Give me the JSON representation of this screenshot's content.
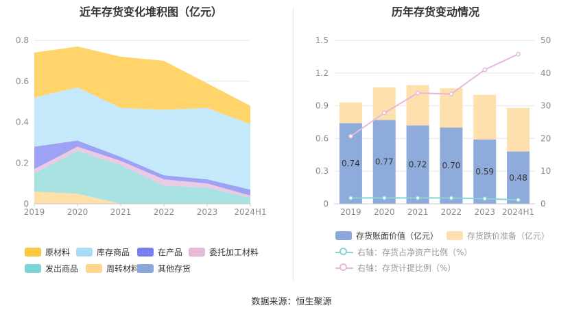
{
  "titles": {
    "left": "近年存货变化堆积图（亿元）",
    "right": "历年存货变动情况"
  },
  "source": "数据来源：恒生聚源",
  "colors": {
    "原材料": "#ffd56b",
    "库存商品": "#c3e9fb",
    "在产品": "#9ea2f5",
    "委托加工材料": "#eec9e3",
    "发出商品": "#a8e2e1",
    "周转材料": "#ffe0a8",
    "其他存货": "#93b1e2",
    "book_value": "#8eabdc",
    "impairment": "#fde0ad",
    "ratio_net": "#88d3d6",
    "ratio_provision": "#e7b8de"
  },
  "left_legend": [
    {
      "label": "原材料",
      "swatch": "#f9c842"
    },
    {
      "label": "库存商品",
      "swatch": "#a9dcf7"
    },
    {
      "label": "在产品",
      "swatch": "#7b7fee"
    },
    {
      "label": "委托加工材料",
      "swatch": "#e6b8da"
    },
    {
      "label": "发出商品",
      "swatch": "#7ed3d3"
    },
    {
      "label": "周转材料",
      "swatch": "#fdd58c"
    },
    {
      "label": "其他存货",
      "swatch": "#8aa8dc"
    }
  ],
  "right_legend": [
    {
      "label": "存货账面价值（亿元）",
      "swatch": "#8aa8dc",
      "kind": "box",
      "muted": false
    },
    {
      "label": "存货跌价准备（亿元）",
      "swatch": "#fde0ad",
      "kind": "box",
      "muted": true
    },
    {
      "label": "右轴：存货占净资产比例（%）",
      "swatch": "#88d3d6",
      "kind": "line",
      "muted": true
    },
    {
      "label": "右轴：存货计提比例（%）",
      "swatch": "#e7b8de",
      "kind": "line",
      "muted": true
    }
  ],
  "chart_data": [
    {
      "type": "area",
      "stacked": true,
      "title": "近年存货变化堆积图（亿元）",
      "categories": [
        "2019",
        "2020",
        "2021",
        "2022",
        "2023",
        "2024H1"
      ],
      "ylim": [
        0,
        0.8
      ],
      "yticks": [
        "0",
        "0.2",
        "0.4",
        "0.6",
        "0.8"
      ],
      "grid": true,
      "legend_position": "bottom",
      "series": [
        {
          "name": "周转材料",
          "values": [
            0.06,
            0.05,
            0.0,
            0.0,
            0.0,
            0.0
          ]
        },
        {
          "name": "发出商品",
          "values": [
            0.09,
            0.21,
            0.19,
            0.09,
            0.08,
            0.03
          ]
        },
        {
          "name": "委托加工材料",
          "values": [
            0.02,
            0.02,
            0.02,
            0.03,
            0.02,
            0.01
          ]
        },
        {
          "name": "在产品",
          "values": [
            0.11,
            0.03,
            0.02,
            0.02,
            0.02,
            0.03
          ]
        },
        {
          "name": "库存商品",
          "values": [
            0.24,
            0.26,
            0.24,
            0.32,
            0.35,
            0.32
          ]
        },
        {
          "name": "原材料",
          "values": [
            0.22,
            0.2,
            0.25,
            0.24,
            0.12,
            0.09
          ]
        },
        {
          "name": "其他存货",
          "values": [
            0,
            0,
            0,
            0,
            0,
            0
          ]
        }
      ]
    },
    {
      "type": "bar",
      "stacked": true,
      "title": "历年存货变动情况",
      "categories": [
        "2019",
        "2020",
        "2021",
        "2022",
        "2023",
        "2024H1"
      ],
      "ylim": [
        0,
        1.5
      ],
      "yticks": [
        "0",
        "0.3",
        "0.6",
        "0.9",
        "1.2",
        "1.5"
      ],
      "y2lim": [
        0,
        50
      ],
      "y2ticks": [
        "0",
        "10",
        "20",
        "30",
        "40",
        "50"
      ],
      "grid": true,
      "legend_position": "bottom",
      "series": [
        {
          "name": "存货账面价值（亿元）",
          "values": [
            0.74,
            0.77,
            0.72,
            0.7,
            0.59,
            0.48
          ],
          "labels": [
            "0.74",
            "0.77",
            "0.72",
            "0.70",
            "0.59",
            "0.48"
          ]
        },
        {
          "name": "存货跌价准备（亿元）",
          "values": [
            0.19,
            0.3,
            0.37,
            0.36,
            0.41,
            0.4
          ]
        }
      ],
      "lines": [
        {
          "name": "右轴：存货占净资产比例（%）",
          "axis": "right",
          "values": [
            1.8,
            1.8,
            1.8,
            1.8,
            1.6,
            1.2
          ]
        },
        {
          "name": "右轴：存货计提比例（%）",
          "axis": "right",
          "values": [
            20.7,
            27.8,
            33.9,
            33.6,
            41.0,
            45.8
          ]
        }
      ]
    }
  ]
}
